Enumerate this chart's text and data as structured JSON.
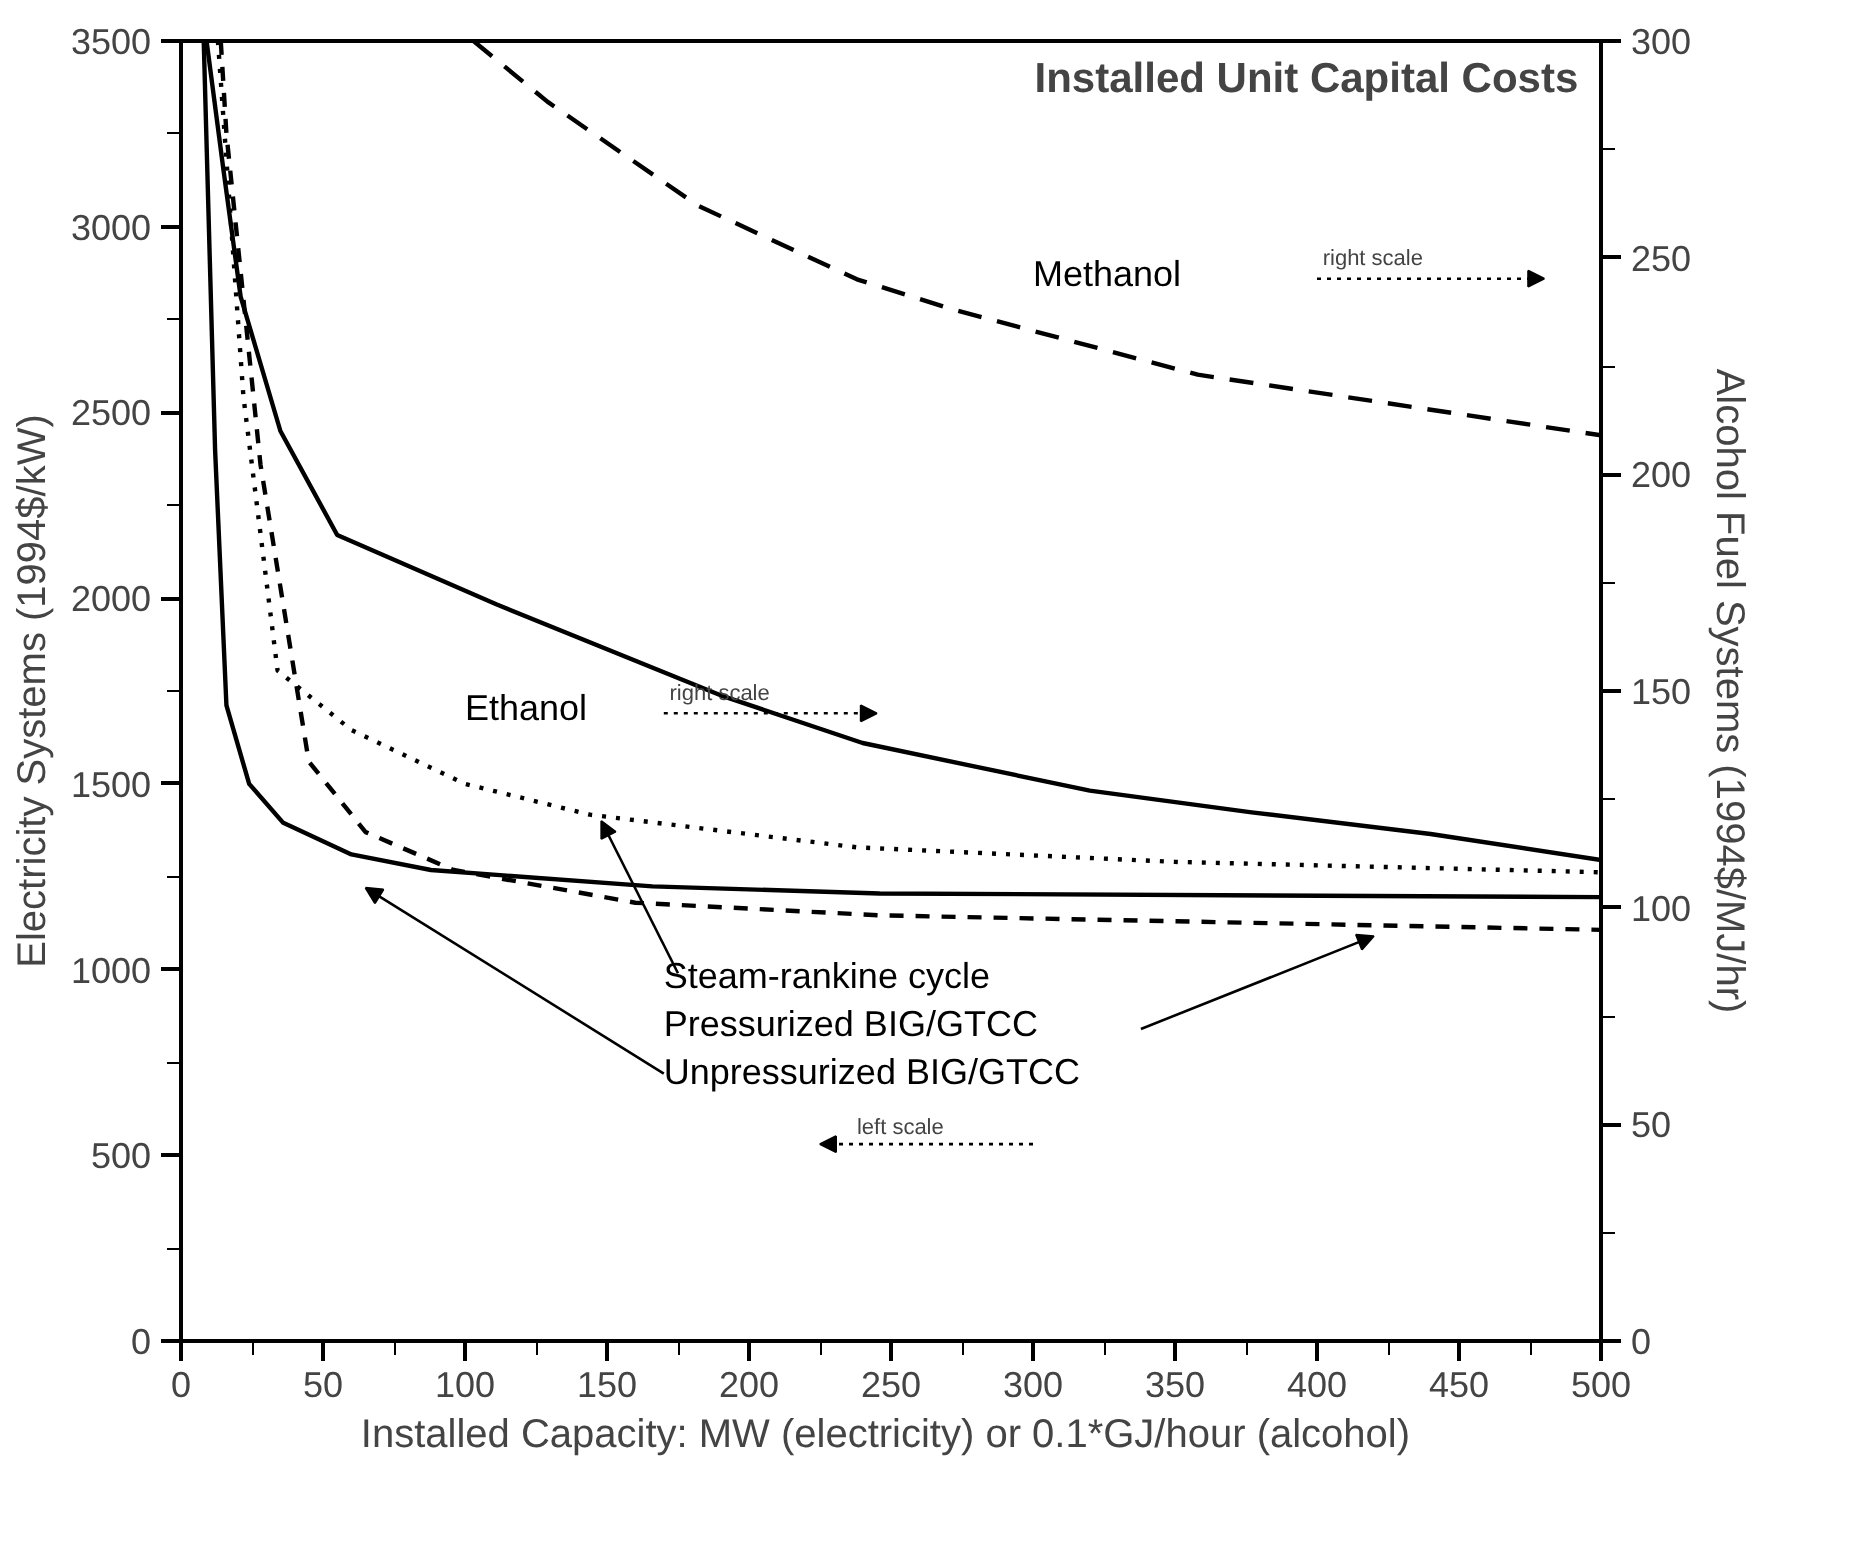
{
  "chart_data": {
    "type": "line",
    "title": "Installed Unit Capital Costs",
    "xlabel": "Installed Capacity:  MW (electricity) or 0.1*GJ/hour (alcohol)",
    "ylabel": "Electricity Systems (1994$/kW)",
    "y2label": "Alcohol Fuel Systems (1994$/MJ/hr)",
    "xlim": [
      0,
      500
    ],
    "ylim": [
      0,
      3500
    ],
    "y2lim": [
      0,
      300
    ],
    "xticks": [
      0,
      {
        "value": 25,
        "label": null
      },
      50,
      {
        "value": 75,
        "label": null
      },
      100,
      {
        "value": 125,
        "label": null
      },
      150,
      {
        "value": 175,
        "label": null
      },
      200,
      {
        "value": 225,
        "label": null
      },
      250,
      {
        "value": 275,
        "label": null
      },
      300,
      {
        "value": 325,
        "label": null
      },
      350,
      {
        "value": 375,
        "label": null
      },
      400,
      {
        "value": 425,
        "label": null
      },
      450,
      {
        "value": 475,
        "label": null
      },
      500
    ],
    "yticks": [
      0,
      {
        "value": 250,
        "label": null
      },
      500,
      {
        "value": 750,
        "label": null
      },
      1000,
      {
        "value": 1250,
        "label": null
      },
      1500,
      {
        "value": 1750,
        "label": null
      },
      2000,
      {
        "value": 2250,
        "label": null
      },
      2500,
      {
        "value": 2750,
        "label": null
      },
      3000,
      {
        "value": 3250,
        "label": null
      },
      3500
    ],
    "y2ticks": [
      0,
      {
        "value": 25,
        "label": null
      },
      50,
      {
        "value": 75,
        "label": null
      },
      100,
      {
        "value": 125,
        "label": null
      },
      150,
      {
        "value": 175,
        "label": null
      },
      200,
      {
        "value": 225,
        "label": null
      },
      250,
      {
        "value": 275,
        "label": null
      },
      300
    ],
    "grid": false,
    "series": [
      {
        "name": "Methanol",
        "color": "#000000",
        "axis": "y2",
        "line_style": "dashed",
        "x": [
          103,
          129,
          182,
          238,
          272,
          358,
          500
        ],
        "values": [
          300,
          286,
          262,
          245,
          238,
          223,
          209
        ]
      },
      {
        "name": "Ethanol",
        "color": "#000000",
        "axis": "y2",
        "line_style": "solid",
        "x": [
          9,
          15,
          21,
          35,
          55,
          111,
          190,
          240,
          320,
          377,
          440,
          500
        ],
        "values": [
          300,
          270,
          241,
          210,
          186,
          170,
          149,
          138,
          127,
          122,
          117,
          111
        ]
      },
      {
        "name": "Steam-rankine cycle",
        "color": "#000000",
        "line_style": "dotted",
        "x": [
          13,
          22,
          34,
          60,
          100,
          144,
          238,
          350,
          500
        ],
        "values": [
          3500,
          2541,
          1805,
          1645,
          1500,
          1417,
          1329,
          1290,
          1262
        ]
      },
      {
        "name": "Pressurized BIG/GTCC",
        "color": "#000000",
        "line_style": "dashed",
        "x": [
          14,
          16,
          28,
          45,
          65,
          96,
          160,
          246,
          500
        ],
        "values": [
          3500,
          3250,
          2359,
          1560,
          1370,
          1268,
          1180,
          1146,
          1107
        ]
      },
      {
        "name": "Unpressurized BIG/GTCC",
        "color": "#000000",
        "line_style": "solid",
        "x": [
          8,
          12,
          16,
          24,
          36,
          60,
          88,
          166,
          246,
          500
        ],
        "values": [
          3500,
          2400,
          1711,
          1500,
          1395,
          1310,
          1268,
          1224,
          1205,
          1195
        ]
      }
    ],
    "annotations": [
      "right scale",
      "right scale",
      "left scale"
    ]
  }
}
